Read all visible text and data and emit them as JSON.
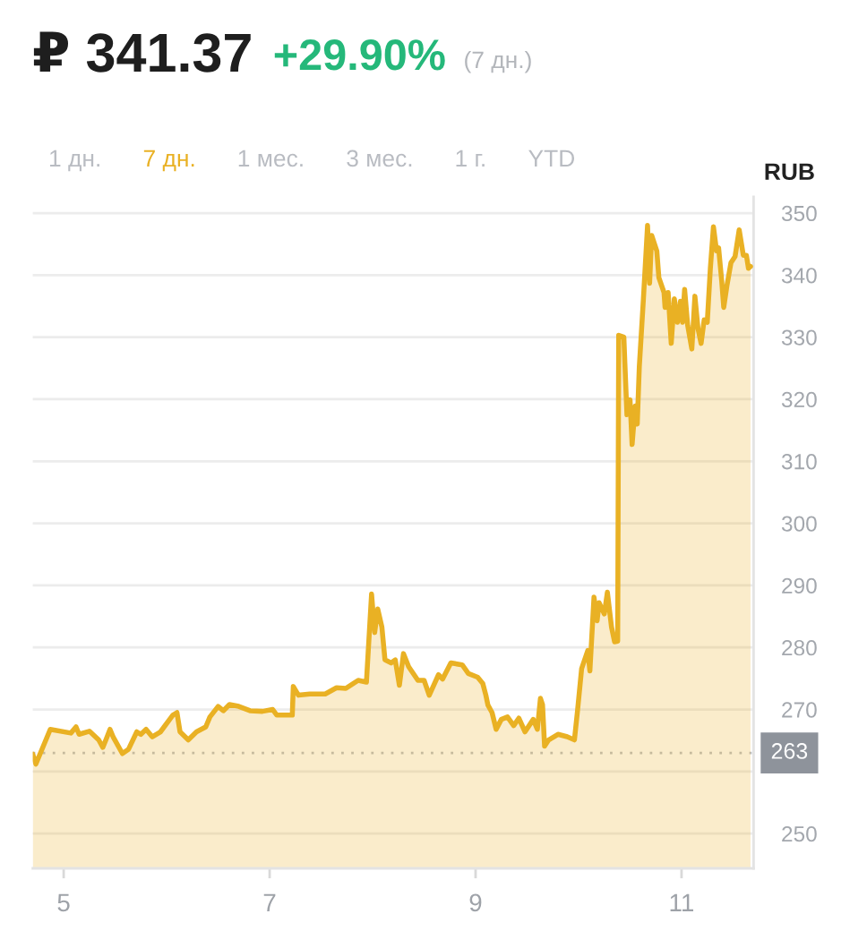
{
  "chart_data": {
    "type": "area",
    "title": "₽ 341.37",
    "subtitle": "+29.90%",
    "ylabel": "RUB",
    "annotations": [
      "(7 дн.)",
      "1 дн.",
      "7 дн.",
      "1 мес.",
      "3 мес.",
      "1 г.",
      "YTD"
    ],
    "x": [
      4.7,
      4.73,
      4.87,
      5.07,
      5.12,
      5.15,
      5.25,
      5.34,
      5.38,
      5.41,
      5.45,
      5.48,
      5.57,
      5.63,
      5.71,
      5.75,
      5.8,
      5.86,
      5.94,
      6.06,
      6.1,
      6.13,
      6.21,
      6.29,
      6.38,
      6.42,
      6.5,
      6.55,
      6.61,
      6.7,
      6.81,
      6.93,
      7.03,
      7.07,
      7.22,
      7.23,
      7.28,
      7.39,
      7.54,
      7.65,
      7.74,
      7.86,
      7.94,
      7.99,
      8.02,
      8.05,
      8.09,
      8.12,
      8.18,
      8.22,
      8.26,
      8.3,
      8.35,
      8.44,
      8.5,
      8.55,
      8.64,
      8.68,
      8.76,
      8.87,
      8.93,
      9.02,
      9.07,
      9.1,
      9.12,
      9.16,
      9.2,
      9.25,
      9.31,
      9.37,
      9.42,
      9.48,
      9.56,
      9.6,
      9.63,
      9.65,
      9.67,
      9.71,
      9.8,
      9.89,
      9.96,
      9.99,
      10.03,
      10.09,
      10.11,
      10.15,
      10.18,
      10.2,
      10.25,
      10.28,
      10.32,
      10.35,
      10.38,
      10.39,
      10.44,
      10.45,
      10.47,
      10.5,
      10.52,
      10.55,
      10.57,
      10.59,
      10.63,
      10.67,
      10.69,
      10.71,
      10.76,
      10.78,
      10.83,
      10.84,
      10.87,
      10.9,
      10.93,
      10.96,
      10.99,
      11.01,
      11.03,
      11.06,
      11.1,
      11.13,
      11.16,
      11.19,
      11.22,
      11.25,
      11.28,
      11.31,
      11.34,
      11.36,
      11.39,
      11.41,
      11.44,
      11.48,
      11.52,
      11.56,
      11.6,
      11.63,
      11.65,
      11.67
    ],
    "values": [
      262.8,
      261.2,
      266.8,
      266.2,
      267.2,
      266.0,
      266.5,
      265.1,
      263.9,
      265.1,
      266.8,
      265.6,
      262.9,
      263.6,
      266.4,
      266.0,
      266.8,
      265.6,
      266.4,
      269.1,
      269.5,
      266.4,
      265.1,
      266.4,
      267.2,
      268.8,
      270.5,
      269.8,
      270.8,
      270.5,
      269.8,
      269.7,
      270.0,
      269.1,
      269.1,
      273.7,
      272.3,
      272.5,
      272.5,
      273.5,
      273.4,
      274.7,
      274.4,
      288.6,
      282.4,
      286.2,
      283.3,
      278.0,
      277.5,
      278.0,
      273.9,
      279.0,
      276.9,
      274.7,
      274.7,
      272.3,
      275.6,
      274.9,
      277.5,
      277.2,
      275.8,
      275.2,
      274.2,
      272.3,
      270.7,
      269.5,
      266.8,
      268.4,
      268.8,
      267.4,
      268.6,
      266.4,
      268.4,
      266.8,
      271.8,
      270.8,
      264.1,
      265.1,
      266.0,
      265.6,
      265.1,
      269.8,
      276.6,
      279.5,
      276.2,
      288.1,
      284.3,
      287.2,
      285.4,
      288.9,
      283.3,
      280.9,
      281.0,
      330.3,
      330.0,
      325.7,
      317.5,
      319.9,
      312.7,
      318.9,
      316.0,
      325.2,
      336.2,
      348.0,
      338.7,
      346.4,
      343.9,
      339.6,
      337.2,
      334.8,
      337.2,
      329.0,
      336.2,
      332.4,
      335.8,
      332.4,
      337.7,
      331.9,
      328.1,
      336.6,
      331.4,
      329.0,
      332.8,
      332.4,
      341.1,
      347.8,
      343.9,
      344.4,
      339.1,
      334.8,
      338.2,
      342.0,
      343.0,
      347.3,
      343.2,
      343.2,
      341.1,
      341.4
    ],
    "color": "#e9b124",
    "xlim": [
      4.7,
      11.7
    ],
    "xticks": [
      5,
      7,
      9,
      11
    ],
    "ylim": [
      244.4,
      352.6
    ],
    "yticks": [
      250,
      {
        "value": 260,
        "label": null
      },
      270,
      280,
      290,
      300,
      310,
      320,
      330,
      340,
      350
    ],
    "grid": "y",
    "ref_lines": [
      {
        "axis": "y",
        "value": 263,
        "label": "263",
        "color": "#8e939b",
        "line_style": "dotted"
      }
    ]
  }
}
